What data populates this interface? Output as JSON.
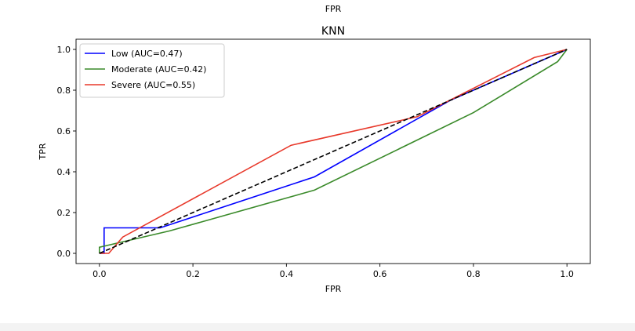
{
  "header": {
    "caption": "FPR"
  },
  "chart_data": {
    "type": "line",
    "title": "KNN",
    "xlabel": "FPR",
    "ylabel": "TPR",
    "xlim": [
      -0.05,
      1.05
    ],
    "ylim": [
      -0.05,
      1.05
    ],
    "xticks": [
      "0.0",
      "0.2",
      "0.4",
      "0.6",
      "0.8",
      "1.0"
    ],
    "yticks": [
      "0.0",
      "0.2",
      "0.4",
      "0.6",
      "0.8",
      "1.0"
    ],
    "grid": false,
    "legend_placement": "upper-left",
    "series": [
      {
        "name": "Low (AUC=0.47)",
        "color": "#0000ff",
        "x": [
          0.0,
          0.0,
          0.01,
          0.01,
          0.13,
          0.46,
          0.75,
          1.0
        ],
        "y": [
          0.0,
          0.0,
          0.0,
          0.125,
          0.125,
          0.375,
          0.75,
          1.0
        ]
      },
      {
        "name": "Moderate (AUC=0.42)",
        "color": "#3a8a2a",
        "x": [
          0.0,
          0.0,
          0.15,
          0.46,
          0.8,
          0.98,
          1.0
        ],
        "y": [
          0.0,
          0.03,
          0.11,
          0.31,
          0.69,
          0.94,
          1.0
        ]
      },
      {
        "name": "Severe (AUC=0.55)",
        "color": "#e8382a",
        "x": [
          0.0,
          0.02,
          0.05,
          0.41,
          0.68,
          0.93,
          1.0
        ],
        "y": [
          0.0,
          0.0,
          0.08,
          0.53,
          0.67,
          0.96,
          1.0
        ]
      }
    ],
    "reference_line": {
      "color": "#000000",
      "style": "dashed",
      "x": [
        0.0,
        1.0
      ],
      "y": [
        0.0,
        1.0
      ]
    }
  }
}
